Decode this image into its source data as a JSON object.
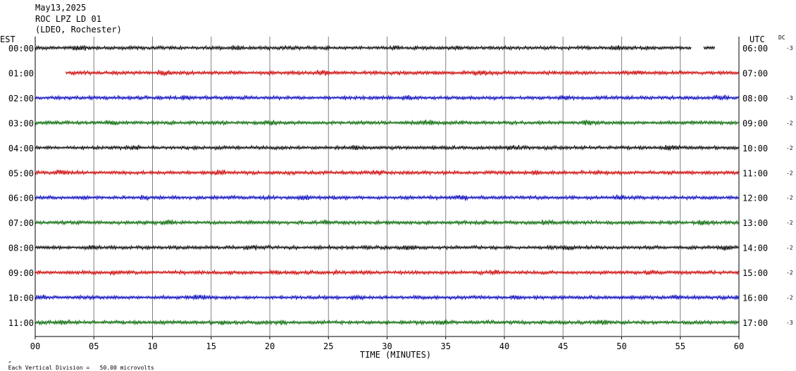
{
  "header": {
    "date": "May13,2025",
    "station": "ROC LPZ LD 01",
    "network": "(LDEO, Rochester)"
  },
  "left_zone": "EST",
  "right_zone": "UTC",
  "dc_header": "DC",
  "footer_note": "Each Vertical Division =   50.00 microvolts",
  "footer_icon": "small-arrow-icon",
  "chart_data": {
    "type": "line",
    "xlabel": "TIME (MINUTES)",
    "xlim": [
      0,
      60
    ],
    "xticks": [
      "00",
      "05",
      "10",
      "15",
      "20",
      "25",
      "30",
      "35",
      "40",
      "45",
      "50",
      "55",
      "60"
    ],
    "trace_colors": [
      "#000000",
      "#cc0000",
      "#0000bb",
      "#006600"
    ],
    "rows": [
      {
        "est": "00:00",
        "utc": "06:00",
        "dc": "-3",
        "start": 0,
        "end": 56,
        "tail": [
          57,
          58
        ]
      },
      {
        "est": "01:00",
        "utc": "07:00",
        "dc": "",
        "start": 2.6,
        "end": 60
      },
      {
        "est": "02:00",
        "utc": "08:00",
        "dc": "-3",
        "start": 0,
        "end": 60
      },
      {
        "est": "03:00",
        "utc": "09:00",
        "dc": "-2",
        "start": 0,
        "end": 60
      },
      {
        "est": "04:00",
        "utc": "10:00",
        "dc": "-2",
        "start": 0,
        "end": 60
      },
      {
        "est": "05:00",
        "utc": "11:00",
        "dc": "-2",
        "start": 0,
        "end": 60
      },
      {
        "est": "06:00",
        "utc": "12:00",
        "dc": "-2",
        "start": 0,
        "end": 60
      },
      {
        "est": "07:00",
        "utc": "13:00",
        "dc": "-2",
        "start": 0,
        "end": 60
      },
      {
        "est": "08:00",
        "utc": "14:00",
        "dc": "-2",
        "start": 0,
        "end": 60
      },
      {
        "est": "09:00",
        "utc": "15:00",
        "dc": "-2",
        "start": 0,
        "end": 60
      },
      {
        "est": "10:00",
        "utc": "16:00",
        "dc": "-2",
        "start": 0,
        "end": 60
      },
      {
        "est": "11:00",
        "utc": "17:00",
        "dc": "-3",
        "start": 0,
        "end": 60
      }
    ]
  }
}
